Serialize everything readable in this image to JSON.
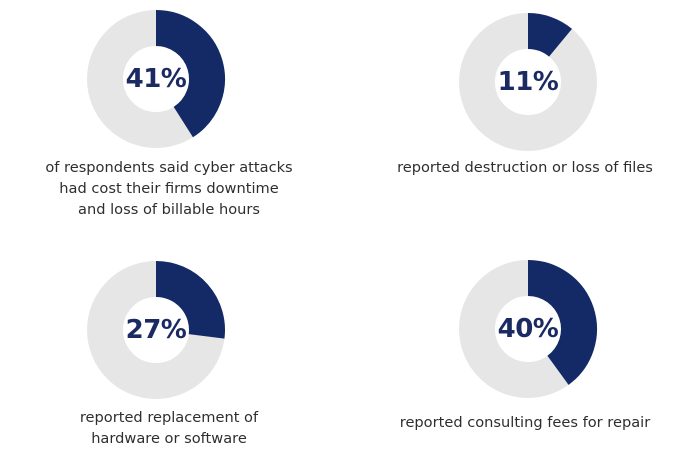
{
  "colors": {
    "accent": "#132a66",
    "track": "#e6e6e6",
    "label": "#1b2a63",
    "text": "#2e2e2e"
  },
  "chart_data": [
    {
      "type": "pie",
      "variant": "donut",
      "label": "41%",
      "value": 41,
      "caption": [
        "of respondents said cyber attacks",
        "had cost their firms downtime",
        "and loss of billable hours"
      ]
    },
    {
      "type": "pie",
      "variant": "donut",
      "label": "11%",
      "value": 11,
      "caption": [
        "reported destruction or loss of files"
      ]
    },
    {
      "type": "pie",
      "variant": "donut",
      "label": "27%",
      "value": 27,
      "caption": [
        "reported replacement of",
        "hardware or software"
      ]
    },
    {
      "type": "pie",
      "variant": "donut",
      "label": "40%",
      "value": 40,
      "caption": [
        "reported consulting fees for repair"
      ]
    }
  ]
}
